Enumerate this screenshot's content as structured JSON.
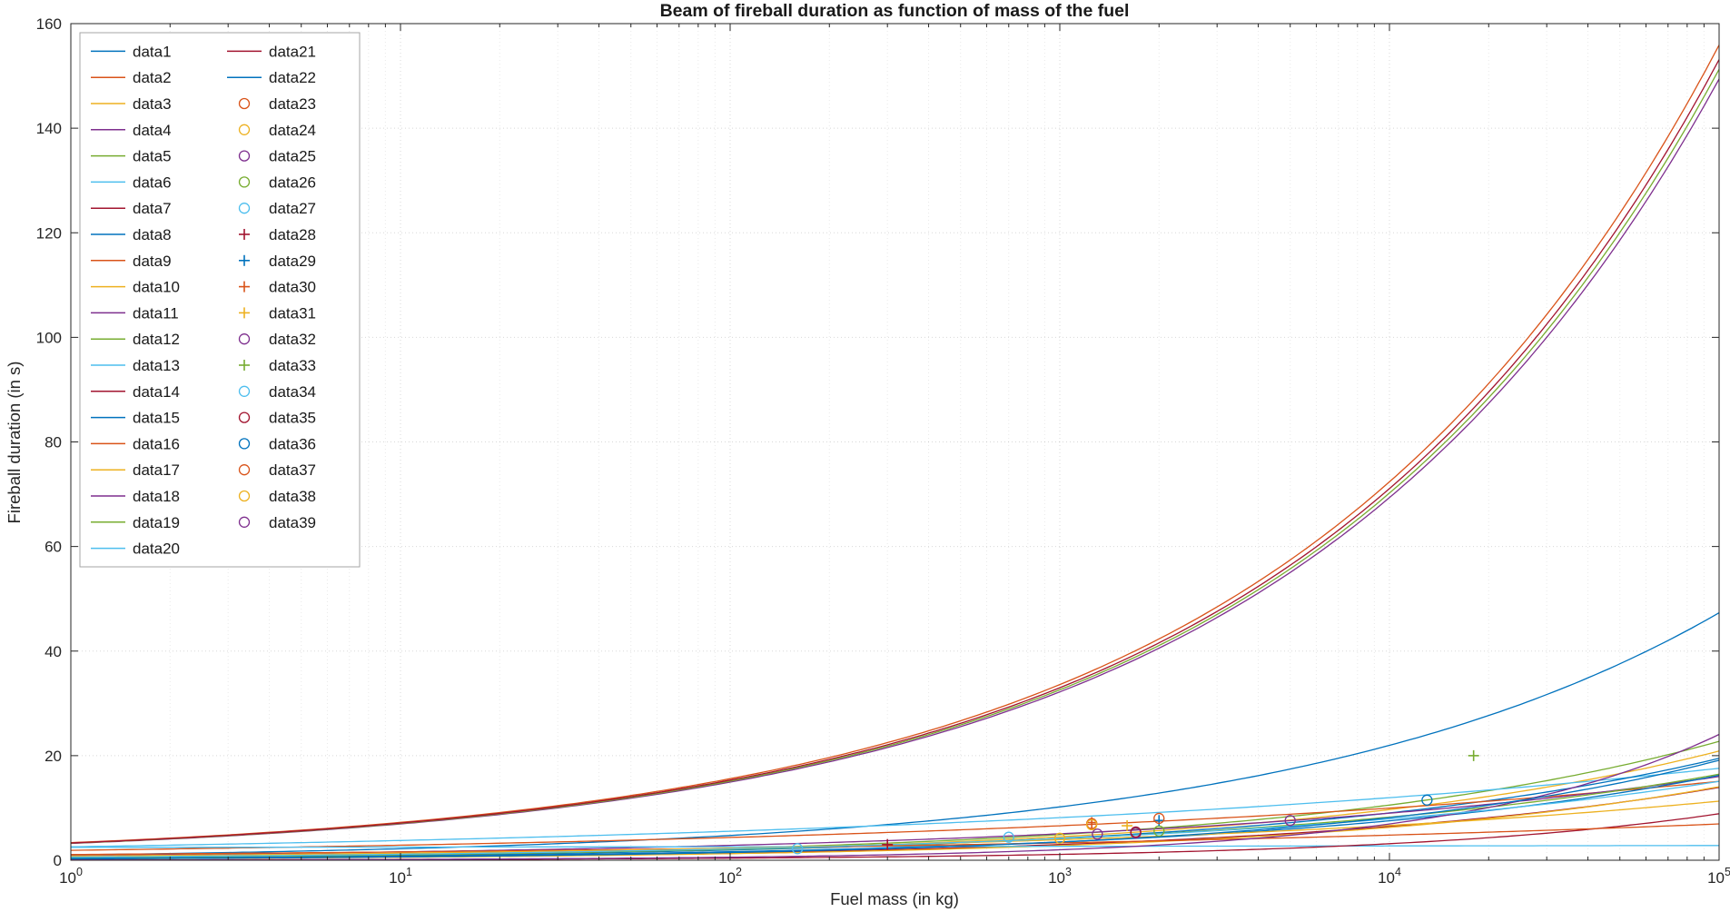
{
  "title": "Beam of fireball duration as function of mass of the fuel",
  "xlabel": "Fuel mass (in kg)",
  "ylabel": "Fireball duration (in s)",
  "palette": {
    "blue": "#0072BD",
    "orange": "#D95319",
    "yellow": "#EDB120",
    "purple": "#7E2F8E",
    "green": "#77AC30",
    "cyan": "#4DBEEE",
    "darkred": "#A2142F"
  },
  "axes": {
    "x_scale": "log",
    "x_min": 1,
    "x_max": 100000,
    "x_tick_exponents": [
      0,
      1,
      2,
      3,
      4,
      5
    ],
    "y_min": 0,
    "y_max": 160,
    "y_ticks": [
      0,
      20,
      40,
      60,
      80,
      100,
      120,
      140,
      160
    ],
    "grid": "on",
    "minor_grid_x": "on"
  },
  "chart_data": {
    "type": "line",
    "title": "Beam of fireball duration as function of mass of the fuel",
    "xlabel": "Fuel mass (in kg)",
    "ylabel": "Fireball duration (in s)",
    "x_range": [
      1,
      100000
    ],
    "ylim": [
      0,
      160
    ],
    "x_scale": "log",
    "model": "power-law curves y = a * x^b sampled over x_range; scatter series are single measured points [x, y]",
    "legend": {
      "position": "northwest",
      "columns": 2,
      "column1_count": 20
    },
    "series": [
      {
        "name": "data1",
        "style": "line",
        "color": "blue",
        "a": 1.02,
        "b": 0.3333
      },
      {
        "name": "data2",
        "style": "line",
        "color": "orange",
        "a": 3.36,
        "b": 0.3333
      },
      {
        "name": "data3",
        "style": "line",
        "color": "yellow",
        "a": 0.45,
        "b": 0.3333
      },
      {
        "name": "data4",
        "style": "line",
        "color": "purple",
        "a": 3.22,
        "b": 0.3333
      },
      {
        "name": "data5",
        "style": "line",
        "color": "green",
        "a": 0.49,
        "b": 0.3333
      },
      {
        "name": "data6",
        "style": "line",
        "color": "cyan",
        "a": 2.57,
        "b": 0.167
      },
      {
        "name": "data7",
        "style": "line",
        "color": "darkred",
        "a": 0.3,
        "b": 0.3333
      },
      {
        "name": "data8",
        "style": "line",
        "color": "blue",
        "a": 0.42,
        "b": 0.3333
      },
      {
        "name": "data9",
        "style": "line",
        "color": "orange",
        "a": 1.9,
        "b": 0.18
      },
      {
        "name": "data10",
        "style": "line",
        "color": "yellow",
        "a": 0.25,
        "b": 0.35
      },
      {
        "name": "data11",
        "style": "line",
        "color": "purple",
        "a": 0.9,
        "b": 0.25
      },
      {
        "name": "data12",
        "style": "line",
        "color": "green",
        "a": 0.52,
        "b": 0.3
      },
      {
        "name": "data13",
        "style": "line",
        "color": "cyan",
        "a": 2.45,
        "b": 0.012
      },
      {
        "name": "data14",
        "style": "line",
        "color": "darkred",
        "a": 0.05,
        "b": 0.45
      },
      {
        "name": "data15",
        "style": "line",
        "color": "blue",
        "a": 0.35,
        "b": 0.3333
      },
      {
        "name": "data16",
        "style": "line",
        "color": "orange",
        "a": 1.1,
        "b": 0.16
      },
      {
        "name": "data17",
        "style": "line",
        "color": "yellow",
        "a": 0.8,
        "b": 0.23
      },
      {
        "name": "data18",
        "style": "line",
        "color": "purple",
        "a": 0.048,
        "b": 0.54
      },
      {
        "name": "data19",
        "style": "line",
        "color": "green",
        "a": 3.26,
        "b": 0.3333
      },
      {
        "name": "data20",
        "style": "line",
        "color": "cyan",
        "a": 0.6,
        "b": 0.28
      },
      {
        "name": "data21",
        "style": "line",
        "color": "darkred",
        "a": 3.3,
        "b": 0.3333
      },
      {
        "name": "data22",
        "style": "line",
        "color": "blue",
        "a": 0.27,
        "b": 0.37
      },
      {
        "name": "data23",
        "style": "scatter",
        "marker": "circle",
        "color": "orange",
        "points": [
          [
            1250,
            7.0
          ]
        ]
      },
      {
        "name": "data24",
        "style": "scatter",
        "marker": "circle",
        "color": "yellow",
        "points": [
          [
            1000,
            4.2
          ]
        ]
      },
      {
        "name": "data25",
        "style": "scatter",
        "marker": "circle",
        "color": "purple",
        "points": [
          [
            1300,
            5.0
          ]
        ]
      },
      {
        "name": "data26",
        "style": "scatter",
        "marker": "circle",
        "color": "green",
        "points": [
          [
            2000,
            5.6
          ]
        ]
      },
      {
        "name": "data27",
        "style": "scatter",
        "marker": "circle",
        "color": "cyan",
        "points": [
          [
            160,
            2.2
          ]
        ]
      },
      {
        "name": "data28",
        "style": "scatter",
        "marker": "plus",
        "color": "darkred",
        "points": [
          [
            300,
            3.0
          ]
        ]
      },
      {
        "name": "data29",
        "style": "scatter",
        "marker": "plus",
        "color": "blue",
        "points": [
          [
            2000,
            7.6
          ]
        ]
      },
      {
        "name": "data30",
        "style": "scatter",
        "marker": "plus",
        "color": "orange",
        "points": [
          [
            1250,
            7.2
          ]
        ]
      },
      {
        "name": "data31",
        "style": "scatter",
        "marker": "plus",
        "color": "yellow",
        "points": [
          [
            1600,
            6.6
          ]
        ]
      },
      {
        "name": "data32",
        "style": "scatter",
        "marker": "circle",
        "color": "purple",
        "points": [
          [
            1700,
            5.2
          ]
        ]
      },
      {
        "name": "data33",
        "style": "scatter",
        "marker": "plus",
        "color": "green",
        "points": [
          [
            18000,
            20.0
          ]
        ]
      },
      {
        "name": "data34",
        "style": "scatter",
        "marker": "circle",
        "color": "cyan",
        "points": [
          [
            700,
            4.4
          ]
        ]
      },
      {
        "name": "data35",
        "style": "scatter",
        "marker": "circle",
        "color": "darkred",
        "points": [
          [
            1700,
            5.4
          ]
        ]
      },
      {
        "name": "data36",
        "style": "scatter",
        "marker": "circle",
        "color": "blue",
        "points": [
          [
            13000,
            11.5
          ]
        ]
      },
      {
        "name": "data37",
        "style": "scatter",
        "marker": "circle",
        "color": "orange",
        "points": [
          [
            2000,
            8.0
          ]
        ]
      },
      {
        "name": "data38",
        "style": "scatter",
        "marker": "circle",
        "color": "yellow",
        "points": [
          [
            1250,
            6.8
          ]
        ]
      },
      {
        "name": "data39",
        "style": "scatter",
        "marker": "circle",
        "color": "purple",
        "points": [
          [
            5000,
            7.6
          ]
        ]
      }
    ]
  }
}
